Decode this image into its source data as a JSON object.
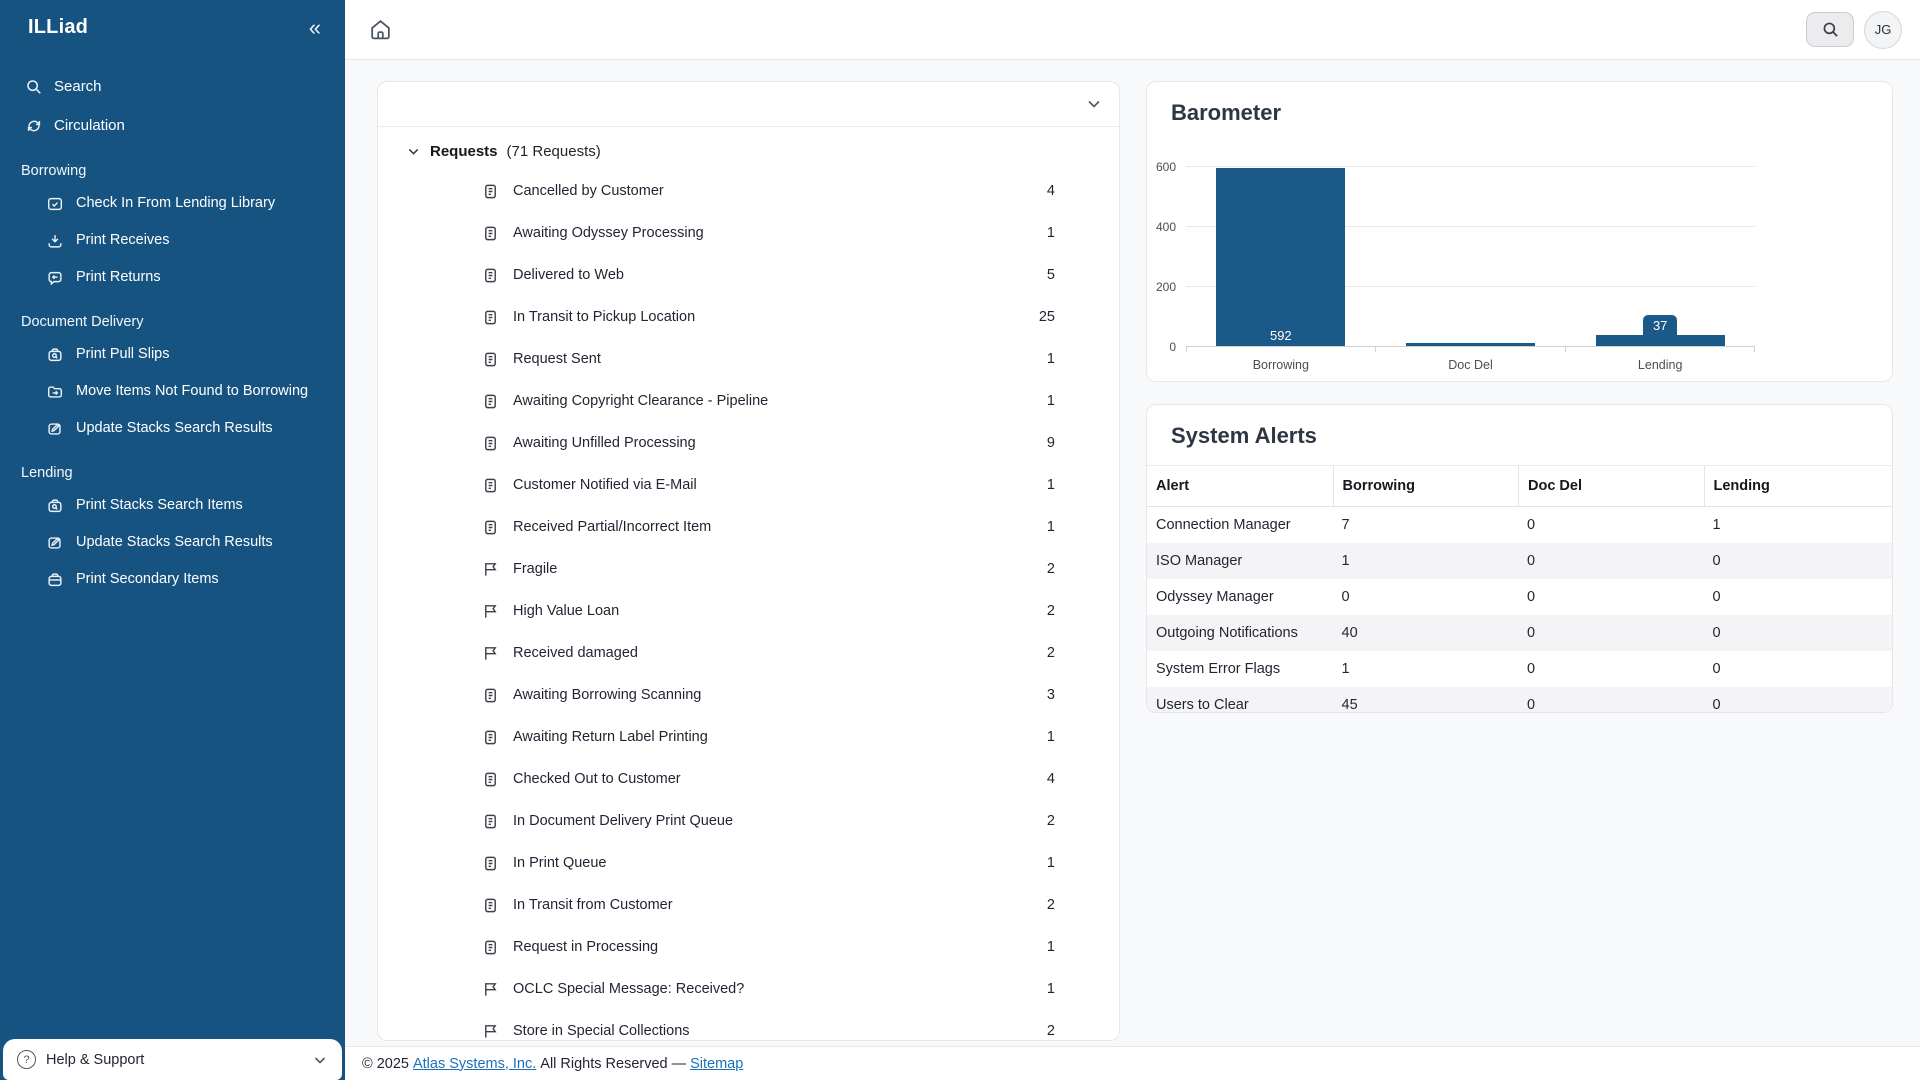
{
  "app": {
    "logo": "ILLiad",
    "collapse_icon": "«"
  },
  "topbar": {
    "avatar_initials": "JG"
  },
  "sidebar": {
    "top_items": [
      {
        "label": "Search",
        "icon": "search-icon"
      },
      {
        "label": "Circulation",
        "icon": "circulation-icon"
      }
    ],
    "sections": [
      {
        "label": "Borrowing",
        "items": [
          {
            "label": "Check In From Lending Library",
            "icon": "check-in-icon"
          },
          {
            "label": "Print Receives",
            "icon": "receive-icon"
          },
          {
            "label": "Print Returns",
            "icon": "return-icon"
          }
        ]
      },
      {
        "label": "Document Delivery",
        "items": [
          {
            "label": "Print Pull Slips",
            "icon": "bag-search-icon"
          },
          {
            "label": "Move Items Not Found to Borrowing",
            "icon": "folder-arrow-icon"
          },
          {
            "label": "Update Stacks Search Results",
            "icon": "edit-icon"
          }
        ]
      },
      {
        "label": "Lending",
        "items": [
          {
            "label": "Print Stacks Search Items",
            "icon": "bag-search-icon"
          },
          {
            "label": "Update Stacks Search Results",
            "icon": "edit-icon"
          },
          {
            "label": "Print Secondary Items",
            "icon": "bag-icon"
          }
        ]
      }
    ],
    "help_label": "Help & Support"
  },
  "requests_panel": {
    "group_title": "Requests",
    "group_count_text": "(71 Requests)",
    "rows": [
      {
        "label": "Cancelled by Customer",
        "count": "4",
        "icon": "doc"
      },
      {
        "label": "Awaiting Odyssey Processing",
        "count": "1",
        "icon": "doc"
      },
      {
        "label": "Delivered to Web",
        "count": "5",
        "icon": "doc"
      },
      {
        "label": "In Transit to Pickup Location",
        "count": "25",
        "icon": "doc"
      },
      {
        "label": "Request Sent",
        "count": "1",
        "icon": "doc"
      },
      {
        "label": "Awaiting Copyright Clearance - Pipeline",
        "count": "1",
        "icon": "doc"
      },
      {
        "label": "Awaiting Unfilled Processing",
        "count": "9",
        "icon": "doc"
      },
      {
        "label": "Customer Notified via E-Mail",
        "count": "1",
        "icon": "doc"
      },
      {
        "label": "Received Partial/Incorrect Item",
        "count": "1",
        "icon": "doc"
      },
      {
        "label": "Fragile",
        "count": "2",
        "icon": "flag"
      },
      {
        "label": "High Value Loan",
        "count": "2",
        "icon": "flag"
      },
      {
        "label": "Received damaged",
        "count": "2",
        "icon": "flag"
      },
      {
        "label": "Awaiting Borrowing Scanning",
        "count": "3",
        "icon": "doc"
      },
      {
        "label": "Awaiting Return Label Printing",
        "count": "1",
        "icon": "doc"
      },
      {
        "label": "Checked Out to Customer",
        "count": "4",
        "icon": "doc"
      },
      {
        "label": "In Document Delivery Print Queue",
        "count": "2",
        "icon": "doc"
      },
      {
        "label": "In Print Queue",
        "count": "1",
        "icon": "doc"
      },
      {
        "label": "In Transit from Customer",
        "count": "2",
        "icon": "doc"
      },
      {
        "label": "Request in Processing",
        "count": "1",
        "icon": "doc"
      },
      {
        "label": "OCLC Special Message: Received?",
        "count": "1",
        "icon": "flag"
      },
      {
        "label": "Store in Special Collections",
        "count": "2",
        "icon": "flag"
      }
    ]
  },
  "chart_data": {
    "type": "bar",
    "title": "Barometer",
    "categories": [
      "Borrowing",
      "Doc Del",
      "Lending"
    ],
    "values": [
      592,
      8,
      37
    ],
    "bar_labels": [
      "592",
      "",
      "37"
    ],
    "xlabel": "",
    "ylabel": "",
    "ylim": [
      0,
      600
    ],
    "yticks_top_to_bottom": [
      "600",
      "400",
      "200",
      "0"
    ],
    "grid": true,
    "bar_color": "#1b5a88",
    "bars": [
      {
        "category": "Borrowing",
        "value": 592,
        "inside_label": "592",
        "chip_label": ""
      },
      {
        "category": "Doc Del",
        "value": 8,
        "inside_label": "",
        "chip_label": ""
      },
      {
        "category": "Lending",
        "value": 37,
        "inside_label": "",
        "chip_label": "37"
      }
    ]
  },
  "system_alerts": {
    "title": "System Alerts",
    "columns": [
      "Alert",
      "Borrowing",
      "Doc Del",
      "Lending"
    ],
    "rows": [
      {
        "alert": "Connection Manager",
        "borrowing": "7",
        "doc_del": "0",
        "lending": "1"
      },
      {
        "alert": "ISO Manager",
        "borrowing": "1",
        "doc_del": "0",
        "lending": "0"
      },
      {
        "alert": "Odyssey Manager",
        "borrowing": "0",
        "doc_del": "0",
        "lending": "0"
      },
      {
        "alert": "Outgoing Notifications",
        "borrowing": "40",
        "doc_del": "0",
        "lending": "0"
      },
      {
        "alert": "System Error Flags",
        "borrowing": "1",
        "doc_del": "0",
        "lending": "0"
      },
      {
        "alert": "Users to Clear",
        "borrowing": "45",
        "doc_del": "0",
        "lending": "0"
      }
    ]
  },
  "footer": {
    "copyright_prefix": "© 2025",
    "company_link": "Atlas Systems, Inc.",
    "rights_text": "All Rights Reserved",
    "separator": "—",
    "sitemap_link": "Sitemap"
  },
  "colors": {
    "sidebar": "#175381",
    "accent_bar": "#1b5a88",
    "link": "#1a70b8"
  }
}
